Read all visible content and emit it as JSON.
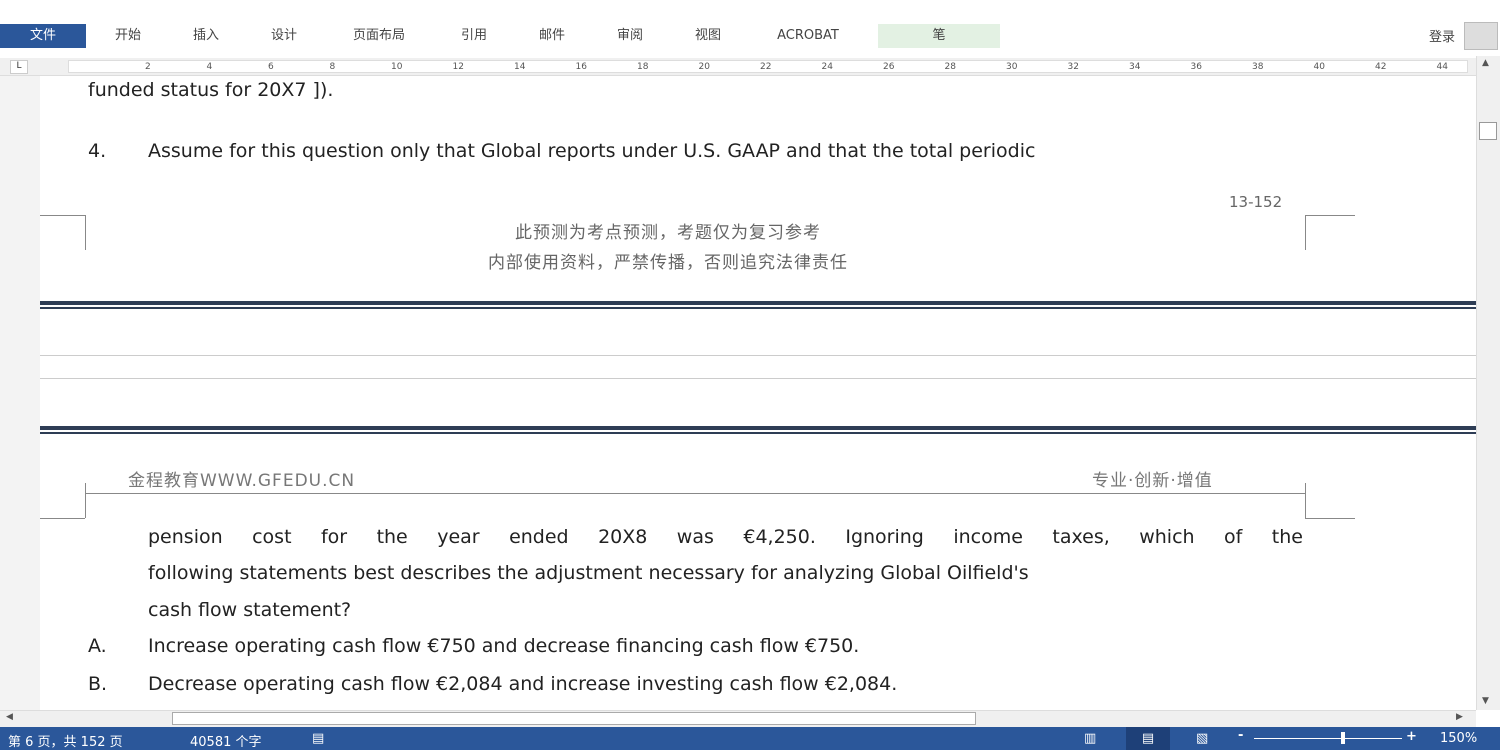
{
  "ribbon": {
    "tabs": [
      "文件",
      "开始",
      "插入",
      "设计",
      "页面布局",
      "引用",
      "邮件",
      "审阅",
      "视图",
      "ACROBAT",
      "笔"
    ],
    "login": "登录"
  },
  "ruler": {
    "ticks": [
      "2",
      "4",
      "6",
      "8",
      "10",
      "12",
      "14",
      "16",
      "18",
      "20",
      "22",
      "24",
      "26",
      "28",
      "30",
      "32",
      "34",
      "36",
      "38",
      "40",
      "42",
      "44"
    ],
    "corner": "L"
  },
  "document": {
    "cut_line": "funded status for 20X7 ]).",
    "q4_num": "4.",
    "q4_text": "Assume for this question only that Global reports under U.S. GAAP and that the total periodic",
    "page_number": "13-152",
    "footer_line1": "此预测为考点预测，考题仅为复习参考",
    "footer_line2": "内部使用资料，严禁传播，否则追究法律责任",
    "header_left": "金程教育WWW.GFEDU.CN",
    "header_right": "专业·创新·增值",
    "body_lines": [
      "pension cost for the year ended 20X8 was €4,250. Ignoring income taxes, which of the",
      "following statements best describes the adjustment necessary for analyzing Global Oilfield's",
      "cash flow statement?"
    ],
    "options": [
      {
        "label": "A.",
        "text": "Increase operating cash flow €750 and decrease financing cash flow €750."
      },
      {
        "label": "B.",
        "text": "Decrease operating cash flow €2,084 and increase investing cash flow €2,084."
      }
    ]
  },
  "status": {
    "page": "第 6 页，共 152 页",
    "words": "40581 个字",
    "zoom": "150%",
    "zoom_level": 0.6
  }
}
